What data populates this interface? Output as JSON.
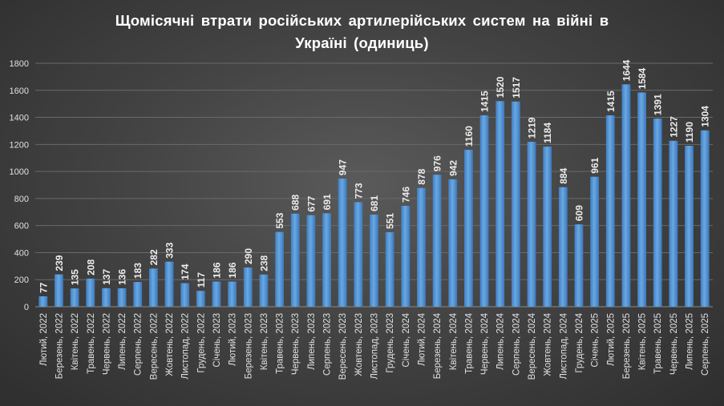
{
  "chart_data": {
    "type": "bar",
    "title_line1": "Щомісячні втрати російських артилерійських систем на війні в",
    "title_line2": "Україні (одиниць)",
    "categories": [
      "Лютий, 2022",
      "Березень, 2022",
      "Квітень, 2022",
      "Травень, 2022",
      "Червень, 2022",
      "Липень, 2022",
      "Серпень, 2022",
      "Вересень, 2022",
      "Жовтень, 2022",
      "Листопад, 2022",
      "Грудень, 2022",
      "Січень, 2023",
      "Лютий, 2023",
      "Березень, 2023",
      "Квітень, 2023",
      "Травень, 2023",
      "Червень, 2023",
      "Липень, 2023",
      "Серпень, 2023",
      "Вересень, 2023",
      "Жовтень, 2023",
      "Листопад, 2023",
      "Грудень, 2023",
      "Січень, 2024",
      "Лютий, 2024",
      "Березень, 2024",
      "Квітень, 2024",
      "Травень, 2024",
      "Червень, 2024",
      "Липень, 2024",
      "Серпень, 2024",
      "Вересень, 2024",
      "Жовтень, 2024",
      "Листопад, 2024",
      "Грудень, 2024",
      "Січень, 2025",
      "Лютий, 2025",
      "Березень, 2025",
      "Квітень, 2025",
      "Травень, 2025",
      "Червень, 2025",
      "Липень, 2025",
      "Серпень, 2025"
    ],
    "values": [
      77,
      239,
      135,
      208,
      137,
      136,
      183,
      282,
      333,
      174,
      117,
      186,
      186,
      290,
      238,
      553,
      688,
      677,
      691,
      947,
      773,
      681,
      551,
      746,
      878,
      976,
      942,
      1160,
      1415,
      1520,
      1517,
      1219,
      1184,
      884,
      609,
      961,
      1415,
      1644,
      1584,
      1391,
      1227,
      1190,
      1304
    ],
    "ylim": [
      0,
      1800
    ],
    "yticks": [
      0,
      200,
      400,
      600,
      800,
      1000,
      1200,
      1400,
      1600,
      1800
    ],
    "grid": true,
    "legend": "none",
    "xlabel": "",
    "ylabel": "",
    "bar_color": "#5b9bd5"
  }
}
